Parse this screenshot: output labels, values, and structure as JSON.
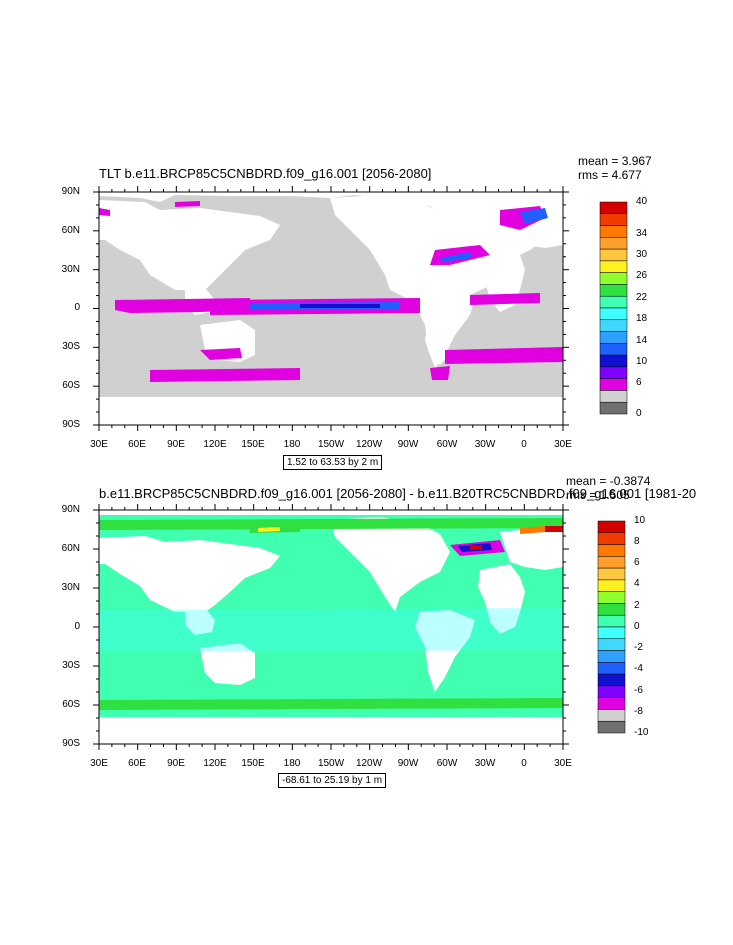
{
  "panels": [
    {
      "title": "TLT b.e11.BRCP85C5CNBDRD.f09_g16.001 [2056-2080]",
      "mean": "mean = 3.967",
      "rms": "rms = 4.677",
      "range_box": "1.52 to 63.53 by 2 m",
      "colorbar_labels": [
        "40",
        "34",
        "30",
        "26",
        "22",
        "18",
        "14",
        "10",
        "6",
        "0"
      ],
      "colorbar_colors": [
        "#d40000",
        "#f03c00",
        "#ff7800",
        "#ff9f30",
        "#ffc640",
        "#fff020",
        "#90ff30",
        "#30e040",
        "#40ffb0",
        "#40ffff",
        "#40d8ff",
        "#30a0ff",
        "#2060ff",
        "#1010d0",
        "#8000ff",
        "#e000e0",
        "#d0d0d0",
        "#707070"
      ]
    },
    {
      "title": "b.e11.BRCP85C5CNBDRD.f09_g16.001 [2056-2080] - b.e11.B20TRC5CNBDRD.f09_g16.001 [1981-20",
      "mean": "mean = -0.3874",
      "rms": "rms = 1.505",
      "range_box": "-68.61 to 25.19 by 1 m",
      "colorbar_labels": [
        "10",
        "8",
        "6",
        "4",
        "2",
        "0",
        "-2",
        "-4",
        "-6",
        "-8",
        "-10"
      ],
      "colorbar_colors": [
        "#d40000",
        "#f03c00",
        "#ff7800",
        "#ff9f30",
        "#ffc640",
        "#fff020",
        "#90ff30",
        "#30e040",
        "#40ffb0",
        "#40ffff",
        "#40d8ff",
        "#30a0ff",
        "#2060ff",
        "#1010d0",
        "#8000ff",
        "#e000e0",
        "#d0d0d0",
        "#707070"
      ]
    }
  ],
  "lat_labels": [
    "90N",
    "60N",
    "30N",
    "0",
    "30S",
    "60S",
    "90S"
  ],
  "lon_labels": [
    "30E",
    "60E",
    "90E",
    "120E",
    "150E",
    "180",
    "150W",
    "120W",
    "90W",
    "60W",
    "30W",
    "0",
    "30E"
  ]
}
